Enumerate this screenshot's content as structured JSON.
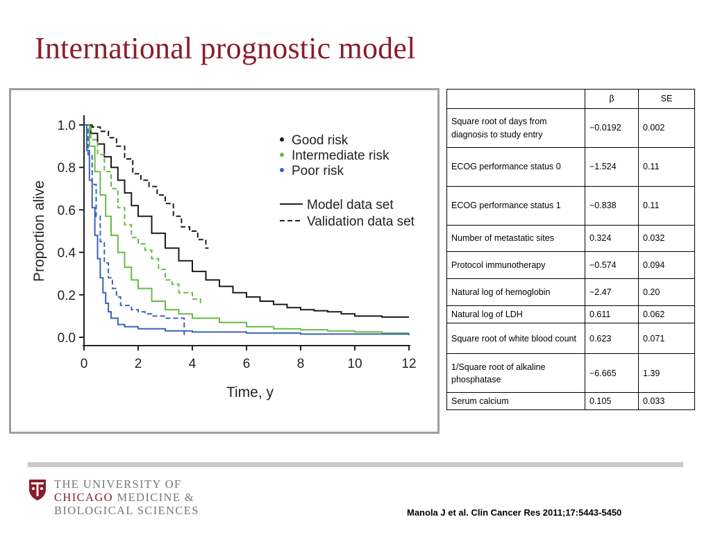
{
  "slide": {
    "title": "International prognostic model",
    "citation": "Manola J et al. Clin Cancer Res 2011;17:5443-5450"
  },
  "logo": {
    "line1": "THE UNIVERSITY OF",
    "line2_accent": "CHICAGO",
    "line2_rest": " MEDICINE &",
    "line3": "BIOLOGICAL SCIENCES",
    "brand_color": "#8a1d2c"
  },
  "colors": {
    "title": "#8a1d2c",
    "divider": "#c9c9c9",
    "frame": "#9e9e9e"
  },
  "chart_data": {
    "type": "line",
    "title": "",
    "xlabel": "Time, y",
    "ylabel": "Proportion alive",
    "xlim": [
      0,
      12
    ],
    "ylim": [
      0,
      1
    ],
    "xticks": [
      0,
      2,
      4,
      6,
      8,
      10,
      12
    ],
    "yticks": [
      0.0,
      0.2,
      0.4,
      0.6,
      0.8,
      1.0
    ],
    "ytick_labels": [
      "0.0",
      "0.2",
      "0.4",
      "0.6",
      "0.8",
      "1.0"
    ],
    "legend_position": "top-right",
    "legend_risk": [
      {
        "label": "Good risk",
        "color": "#1a1a1a"
      },
      {
        "label": "Intermediate risk",
        "color": "#66bb44"
      },
      {
        "label": "Poor risk",
        "color": "#3a63b8"
      }
    ],
    "legend_lines": [
      {
        "label": "Model data set",
        "dash": "solid"
      },
      {
        "label": "Validation data set",
        "dash": "dashed"
      }
    ],
    "series": [
      {
        "name": "Good risk – Model data set",
        "risk": "good",
        "dataset": "model",
        "color": "#1a1a1a",
        "dash": "solid",
        "points": [
          [
            0,
            1.0
          ],
          [
            0.25,
            0.96
          ],
          [
            0.5,
            0.91
          ],
          [
            0.75,
            0.85
          ],
          [
            1,
            0.8
          ],
          [
            1.25,
            0.74
          ],
          [
            1.5,
            0.68
          ],
          [
            1.75,
            0.62
          ],
          [
            2,
            0.57
          ],
          [
            2.5,
            0.49
          ],
          [
            3,
            0.42
          ],
          [
            3.5,
            0.36
          ],
          [
            4,
            0.31
          ],
          [
            4.5,
            0.27
          ],
          [
            5,
            0.24
          ],
          [
            5.5,
            0.21
          ],
          [
            6,
            0.19
          ],
          [
            6.5,
            0.17
          ],
          [
            7,
            0.155
          ],
          [
            7.5,
            0.14
          ],
          [
            8,
            0.13
          ],
          [
            8.5,
            0.125
          ],
          [
            9,
            0.12
          ],
          [
            9.5,
            0.11
          ],
          [
            10,
            0.1
          ],
          [
            11,
            0.095
          ],
          [
            12,
            0.095
          ]
        ]
      },
      {
        "name": "Good risk – Validation data set",
        "risk": "good",
        "dataset": "validation",
        "color": "#1a1a1a",
        "dash": "dashed",
        "points": [
          [
            0,
            1.0
          ],
          [
            0.3,
            0.99
          ],
          [
            0.6,
            0.97
          ],
          [
            0.9,
            0.94
          ],
          [
            1.2,
            0.9
          ],
          [
            1.5,
            0.84
          ],
          [
            1.8,
            0.77
          ],
          [
            2.1,
            0.74
          ],
          [
            2.4,
            0.71
          ],
          [
            2.7,
            0.67
          ],
          [
            3,
            0.63
          ],
          [
            3.3,
            0.57
          ],
          [
            3.6,
            0.52
          ],
          [
            3.9,
            0.5
          ],
          [
            4.2,
            0.46
          ],
          [
            4.5,
            0.42
          ],
          [
            4.6,
            0.42
          ]
        ]
      },
      {
        "name": "Intermediate risk – Model data set",
        "risk": "intermediate",
        "dataset": "model",
        "color": "#66bb44",
        "dash": "solid",
        "points": [
          [
            0,
            1.0
          ],
          [
            0.2,
            0.9
          ],
          [
            0.4,
            0.78
          ],
          [
            0.6,
            0.67
          ],
          [
            0.8,
            0.57
          ],
          [
            1,
            0.48
          ],
          [
            1.25,
            0.4
          ],
          [
            1.5,
            0.33
          ],
          [
            1.75,
            0.27
          ],
          [
            2,
            0.23
          ],
          [
            2.5,
            0.17
          ],
          [
            3,
            0.13
          ],
          [
            3.5,
            0.11
          ],
          [
            4,
            0.09
          ],
          [
            5,
            0.07
          ],
          [
            6,
            0.05
          ],
          [
            7,
            0.04
          ],
          [
            8,
            0.035
          ],
          [
            9,
            0.03
          ],
          [
            10,
            0.025
          ],
          [
            11,
            0.02
          ],
          [
            12,
            0.02
          ]
        ]
      },
      {
        "name": "Intermediate risk – Validation data set",
        "risk": "intermediate",
        "dataset": "validation",
        "color": "#66bb44",
        "dash": "dashed",
        "points": [
          [
            0,
            1.0
          ],
          [
            0.25,
            0.93
          ],
          [
            0.5,
            0.86
          ],
          [
            0.75,
            0.78
          ],
          [
            1,
            0.7
          ],
          [
            1.25,
            0.61
          ],
          [
            1.5,
            0.53
          ],
          [
            1.75,
            0.47
          ],
          [
            2,
            0.44
          ],
          [
            2.25,
            0.41
          ],
          [
            2.5,
            0.37
          ],
          [
            2.75,
            0.32
          ],
          [
            3,
            0.27
          ],
          [
            3.25,
            0.25
          ],
          [
            3.5,
            0.21
          ],
          [
            3.75,
            0.21
          ],
          [
            4,
            0.18
          ],
          [
            4.3,
            0.16
          ]
        ]
      },
      {
        "name": "Poor risk – Model data set",
        "risk": "poor",
        "dataset": "model",
        "color": "#3a63b8",
        "dash": "solid",
        "points": [
          [
            0,
            1.0
          ],
          [
            0.1,
            0.88
          ],
          [
            0.2,
            0.74
          ],
          [
            0.3,
            0.61
          ],
          [
            0.4,
            0.48
          ],
          [
            0.5,
            0.37
          ],
          [
            0.6,
            0.28
          ],
          [
            0.7,
            0.21
          ],
          [
            0.8,
            0.16
          ],
          [
            0.9,
            0.12
          ],
          [
            1,
            0.09
          ],
          [
            1.25,
            0.06
          ],
          [
            1.5,
            0.05
          ],
          [
            2,
            0.04
          ],
          [
            3,
            0.03
          ],
          [
            4,
            0.025
          ],
          [
            6,
            0.02
          ],
          [
            8,
            0.015
          ],
          [
            12,
            0.01
          ]
        ]
      },
      {
        "name": "Poor risk – Validation data set",
        "risk": "poor",
        "dataset": "validation",
        "color": "#3a63b8",
        "dash": "dashed",
        "points": [
          [
            0,
            1.0
          ],
          [
            0.15,
            0.86
          ],
          [
            0.3,
            0.72
          ],
          [
            0.45,
            0.57
          ],
          [
            0.6,
            0.45
          ],
          [
            0.75,
            0.35
          ],
          [
            0.9,
            0.28
          ],
          [
            1.05,
            0.23
          ],
          [
            1.2,
            0.19
          ],
          [
            1.35,
            0.15
          ],
          [
            1.5,
            0.15
          ],
          [
            1.75,
            0.13
          ],
          [
            2,
            0.12
          ],
          [
            2.25,
            0.11
          ],
          [
            2.5,
            0.1
          ],
          [
            3,
            0.09
          ],
          [
            3.7,
            0.09
          ],
          [
            3.7,
            0.0
          ]
        ]
      }
    ]
  },
  "table": {
    "headers": [
      "",
      "β",
      "SE"
    ],
    "rows": [
      {
        "label": "Square root of days from diagnosis to study entry",
        "beta": "−0.0192",
        "se": "0.002"
      },
      {
        "label": "ECOG performance status 0",
        "beta": "−1.524",
        "se": "0.11"
      },
      {
        "label": "ECOG performance status 1",
        "beta": "−0.838",
        "se": "0.11"
      },
      {
        "label": "Number of metastatic sites",
        "beta": "0.324",
        "se": "0.032"
      },
      {
        "label": "Protocol immunotherapy",
        "beta": "−0.574",
        "se": "0.094"
      },
      {
        "label": "Natural log of hemoglobin",
        "beta": "−2.47",
        "se": "0.20"
      },
      {
        "label": "Natural log of LDH",
        "beta": "0.611",
        "se": "0.062"
      },
      {
        "label": "Square root of white blood count",
        "beta": "0.623",
        "se": "0.071"
      },
      {
        "label": "1/Square root of alkaline phosphatase",
        "beta": "−6.665",
        "se": "1.39"
      },
      {
        "label": "Serum calcium",
        "beta": "0.105",
        "se": "0.033"
      }
    ]
  }
}
